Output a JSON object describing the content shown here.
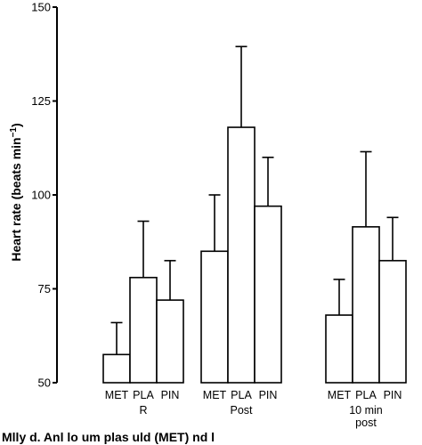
{
  "chart_data": {
    "type": "bar",
    "ylabel": "Heart rate (beats min",
    "ylabel_sup": "−1",
    "ylabel_close": ")",
    "ylim": [
      50,
      150
    ],
    "yticks": [
      50,
      75,
      100,
      125,
      150
    ],
    "error_bars": "one-sided, upper",
    "groups": [
      {
        "label_lines": [
          "R"
        ],
        "bars": [
          {
            "label": "MET",
            "value": 57.5,
            "err_top": 66
          },
          {
            "label": "PLA",
            "value": 78,
            "err_top": 93
          },
          {
            "label": "PIN",
            "value": 72,
            "err_top": 82.5
          }
        ]
      },
      {
        "label_lines": [
          "Post"
        ],
        "bars": [
          {
            "label": "MET",
            "value": 85,
            "err_top": 100
          },
          {
            "label": "PLA",
            "value": 118,
            "err_top": 139.5
          },
          {
            "label": "PIN",
            "value": 97,
            "err_top": 110
          }
        ]
      },
      {
        "label_lines": [
          "10 min",
          "post"
        ],
        "bars": [
          {
            "label": "MET",
            "value": 68,
            "err_top": 77.5
          },
          {
            "label": "PLA",
            "value": 91.5,
            "err_top": 111.5
          },
          {
            "label": "PIN",
            "value": 82.5,
            "err_top": 94
          }
        ]
      }
    ]
  },
  "caption": "Mlly d. Anl lo um plas uld (MET) nd l"
}
